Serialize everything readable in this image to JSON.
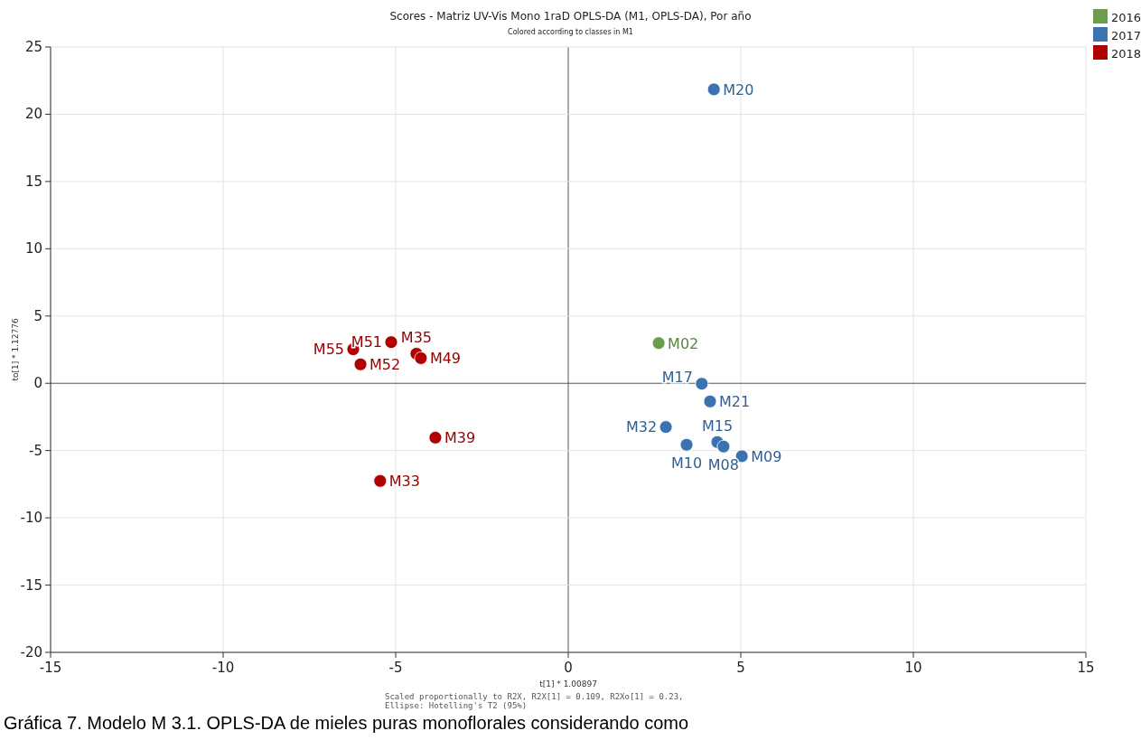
{
  "chart_data": {
    "type": "scatter",
    "title": "Scores - Matriz UV-Vis Mono 1raD OPLS-DA (M1, OPLS-DA), Por año",
    "subtitle": "Colored according to classes in M1",
    "xlabel": "t[1] * 1.00897",
    "ylabel": "to[1] * 1.12776",
    "xlim": [
      -15,
      15
    ],
    "xticks": [
      -15,
      -10,
      -5,
      0,
      5,
      10,
      15
    ],
    "ylim": [
      -20,
      25
    ],
    "yticks": [
      -20,
      -15,
      -10,
      -5,
      0,
      5,
      10,
      15,
      20,
      25
    ],
    "grid": true,
    "legend": "top right",
    "marker": "circle",
    "series": [
      {
        "name": "2016",
        "color": "#6a9e4f",
        "x": [
          2.62
        ],
        "values": [
          2.99
        ],
        "value_labels": [
          "M02"
        ]
      },
      {
        "name": "2017",
        "color": "#3a73b0",
        "x": [
          4.22,
          3.87,
          4.11,
          2.83,
          4.32,
          4.5,
          3.43,
          5.03
        ],
        "values": [
          21.85,
          -0.03,
          -1.35,
          -3.25,
          -4.37,
          -4.7,
          -4.57,
          -5.42
        ],
        "value_labels": [
          "M20",
          "M17",
          "M21",
          "M32",
          "M15",
          "M08",
          "M10",
          "M09"
        ]
      },
      {
        "name": "2018",
        "color": "#b00000",
        "x": [
          -6.23,
          -5.13,
          -4.4,
          -4.27,
          -6.02,
          -3.85,
          -5.45
        ],
        "values": [
          2.53,
          3.06,
          2.2,
          1.87,
          1.41,
          -4.04,
          -7.26
        ],
        "value_labels": [
          "M55",
          "M51",
          "M35",
          "M49",
          "M52",
          "M39",
          "M33"
        ]
      }
    ],
    "annotations": [
      "Scaled proportionally to R2X, R2X[1] = 0.109, R2Xo[1] = 0.23,",
      "Ellipse: Hotelling's T2 (95%)",
      "Gráfica 7. Modelo M 3.1. OPLS-DA de mieles puras monoflorales considerando como"
    ]
  }
}
